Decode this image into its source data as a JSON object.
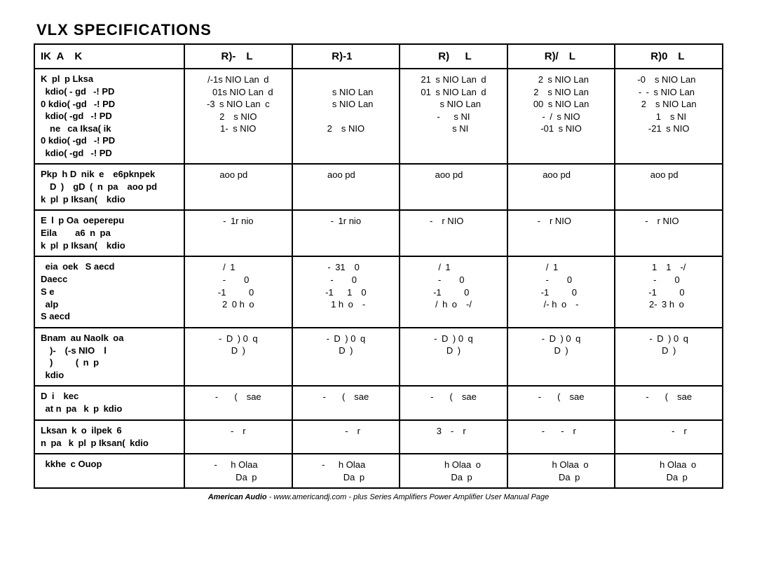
{
  "title": "VLX SPECIFICATIONS",
  "header": {
    "model": "IK A  K",
    "cols": [
      "R)-  L ",
      "R)-1  ",
      "R)   L",
      "R)/  L ",
      "R)0  L "
    ]
  },
  "rows": [
    {
      "label_title": "K pl p Lksa",
      "label_lines": [
        " kdio( - gd  -! PD",
        "0 kdio( -gd  -! PD",
        " kdio( -gd  -! PD",
        "  ne  ca Iksa( ik",
        "0 kdio( -gd  -! PD",
        " kdio( -gd  -! PD"
      ],
      "values": [
        [
          "/-1s NIO Lan d",
          "  01s NIO Lan d",
          "-3 s NIO Lan c",
          "",
          "2  s NIO",
          "1- s NIO"
        ],
        [
          "  ",
          "   s NIO Lan",
          "   s NIO Lan",
          "",
          "  ",
          "2  s NIO"
        ],
        [
          "21 s NIO Lan d",
          "01 s NIO Lan d",
          "   s NIO Lan",
          "",
          "-   s NI",
          "   s NI"
        ],
        [
          " 2 s NIO Lan",
          "2  s NIO Lan",
          "00 s NIO Lan",
          "",
          "- / s NIO",
          "-01 s NIO"
        ],
        [
          "-0  s NIO Lan ",
          "- - s NIO Lan ",
          "2  s NIO Lan",
          "",
          " 1  s NI",
          "-21 s NIO"
        ]
      ]
    },
    {
      "label_title": "Pkp h D nik e  e6pknpek",
      "label_lines": [
        "  D )  gD ( n pa  aoo pd",
        "k pl p Iksan(  kdio"
      ],
      "values": [
        [
          " aoo pd   "
        ],
        [
          " aoo pd   "
        ],
        [
          " aoo pd   "
        ],
        [
          " aoo pd   "
        ],
        [
          " aoo pd   "
        ]
      ]
    },
    {
      "label_title": "E l p Oa oeperepu",
      "label_lines": [
        "Eila    a6 n pa",
        "k pl p Iksan(  kdio"
      ],
      "values": [
        [
          "- 1r nio"
        ],
        [
          "- 1r nio"
        ],
        [
          "-  r NIO   "
        ],
        [
          "-  r NIO   "
        ],
        [
          "-  r NIO   "
        ]
      ]
    },
    {
      "label_title": " eia oek  S aecd",
      "label_lines": [
        "Daecc",
        "S e",
        " alp",
        "S aecd"
      ],
      "values": [
        [
          "/ 1    ",
          "-    0 ",
          "-1     0 ",
          " 2 0 h o "
        ],
        [
          "- 31  0 ",
          "-    0 ",
          "-1   1  0",
          " 1 h o  -"
        ],
        [
          "/ 1    ",
          "-    0 ",
          "-1     0 ",
          "/ h o  -/"
        ],
        [
          "/ 1    ",
          "-    0 ",
          "-1     0 ",
          "/- h o  -"
        ],
        [
          "1  1  -/",
          "-    0 ",
          "-1     0 ",
          "2- 3 h o "
        ]
      ]
    },
    {
      "label_title": "Bnam au Naolk oa",
      "label_lines": [
        "  )-  (-s NIO  l",
        "  )     ( n p",
        " kdio"
      ],
      "values": [
        [
          "- D ) 0 q",
          "",
          "  D )  "
        ],
        [
          "- D ) 0 q",
          "",
          "  D )  "
        ],
        [
          "- D ) 0 q",
          "",
          "  D )  "
        ],
        [
          "- D ) 0 q",
          "",
          "  D )  "
        ],
        [
          "- D ) 0 q",
          "",
          "  D )  "
        ]
      ]
    },
    {
      "label_title": "D i  kec",
      "label_lines": [
        " at n pa  k p kdio"
      ],
      "values": [
        [
          "-    (  sae"
        ],
        [
          "-    (  sae"
        ],
        [
          "-    (  sae"
        ],
        [
          "-    (  sae"
        ],
        [
          "-    (  sae"
        ]
      ]
    },
    {
      "label_title": "Lksan k o ilpek 6",
      "label_lines": [
        "n pa  k pl p Iksan( kdio"
      ],
      "values": [
        [
          " -  r "
        ],
        [
          "   -  r"
        ],
        [
          "3  -  r "
        ],
        [
          "-    -  r "
        ],
        [
          "     -  r"
        ]
      ]
    },
    {
      "label_title": " kkhe c Ouop",
      "label_lines": [
        ""
      ],
      "values": [
        [
          "-   h Olaa ",
          "    Da p"
        ],
        [
          "-   h Olaa ",
          "    Da p"
        ],
        [
          "    h Olaa o",
          "    Da p"
        ],
        [
          "    h Olaa o",
          "    Da p"
        ],
        [
          "    h Olaa o",
          "    Da p"
        ]
      ]
    }
  ],
  "footer": {
    "brand": "American Audio",
    "text": "  -  www.americandj.com  -  plus Series Amplifiers Power Amplifier User Manual  Page"
  }
}
